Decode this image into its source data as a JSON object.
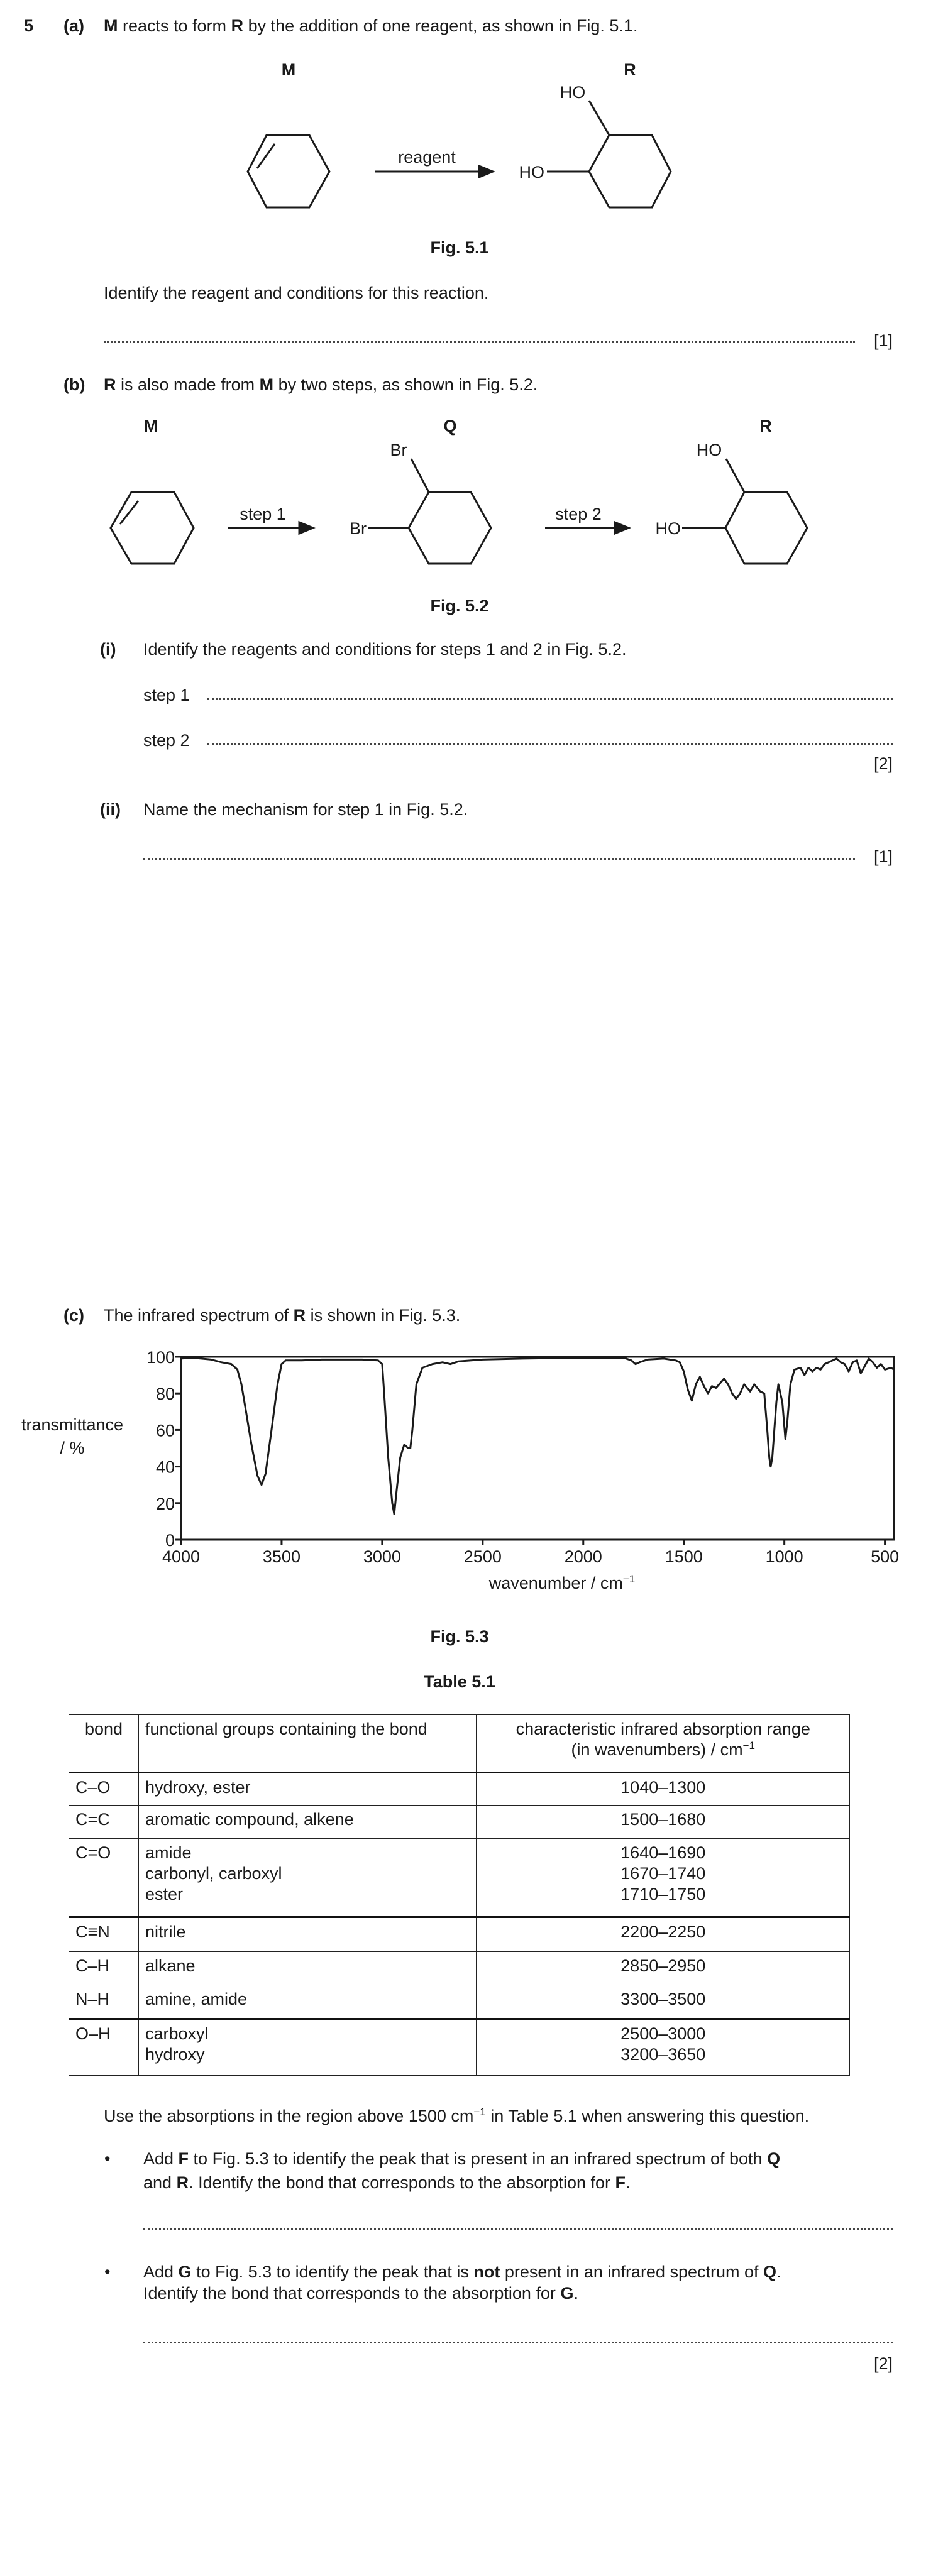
{
  "question_number": "5",
  "part_a": {
    "label": "(a)",
    "text": [
      "M",
      " reacts to form ",
      "R",
      " by the addition of one reagent, as shown in Fig. 5.1."
    ],
    "fig": {
      "label_m": "M",
      "label_r": "R",
      "arrow_label": "reagent",
      "ho_top": "HO",
      "ho_left": "HO",
      "caption": "Fig. 5.1"
    },
    "prompt": "Identify the reagent and conditions for this reaction.",
    "marks": "[1]"
  },
  "part_b": {
    "label": "(b)",
    "text": [
      "R",
      " is also made from ",
      "M",
      " by two steps, as shown in Fig. 5.2."
    ],
    "fig": {
      "label_m": "M",
      "label_q": "Q",
      "label_r": "R",
      "step1": "step 1",
      "step2": "step 2",
      "br_top": "Br",
      "br_left": "Br",
      "ho_top": "HO",
      "ho_left": "HO",
      "caption": "Fig. 5.2"
    },
    "i": {
      "label": "(i)",
      "prompt": "Identify the reagents and conditions for steps 1 and 2 in Fig. 5.2.",
      "step1_label": "step 1",
      "step2_label": "step 2",
      "marks": "[2]"
    },
    "ii": {
      "label": "(ii)",
      "prompt": "Name the mechanism for step 1 in Fig. 5.2.",
      "marks": "[1]"
    }
  },
  "part_c": {
    "label": "(c)",
    "text": [
      "The infrared spectrum of ",
      "R",
      " is shown in Fig. 5.3."
    ],
    "fig_caption": "Fig. 5.3",
    "table_caption": "Table 5.1",
    "table": {
      "headers": [
        "bond",
        "functional groups containing the bond",
        "characteristic infrared absorption range",
        "(in wavenumbers) / cm",
        "−1"
      ],
      "rows": [
        {
          "bond": "C–O",
          "groups": [
            "hydroxy, ester"
          ],
          "ranges": [
            "1040–1300"
          ]
        },
        {
          "bond": "C=C",
          "groups": [
            "aromatic compound, alkene"
          ],
          "ranges": [
            "1500–1680"
          ]
        },
        {
          "bond": "C=O",
          "groups": [
            "amide",
            "carbonyl, carboxyl",
            "ester"
          ],
          "ranges": [
            "1640–1690",
            "1670–1740",
            "1710–1750"
          ]
        },
        {
          "bond": "C≡N",
          "groups": [
            "nitrile"
          ],
          "ranges": [
            "2200–2250"
          ]
        },
        {
          "bond": "C–H",
          "groups": [
            "alkane"
          ],
          "ranges": [
            "2850–2950"
          ]
        },
        {
          "bond": "N–H",
          "groups": [
            "amine, amide"
          ],
          "ranges": [
            "3300–3500"
          ]
        },
        {
          "bond": "O–H",
          "groups": [
            "carboxyl",
            "hydroxy"
          ],
          "ranges": [
            "2500–3000",
            "3200–3650"
          ]
        }
      ]
    },
    "instruction": [
      "Use the absorptions in the region above 1500 cm",
      "−1",
      " in Table 5.1 when answering this question."
    ],
    "bullet_f": [
      "Add ",
      "F",
      " to Fig. 5.3 to identify the peak that is present in an infrared spectrum of both ",
      "Q",
      "and ",
      "R",
      ". Identify the bond that corresponds to the absorption for ",
      "F",
      "."
    ],
    "bullet_g": [
      "Add ",
      "G",
      " to Fig. 5.3 to identify the peak that is ",
      "not",
      " present in an infrared spectrum of ",
      "Q",
      ".",
      "Identify the bond that corresponds to the absorption for ",
      "G",
      "."
    ],
    "bullet_symbol": "•",
    "marks": "[2]"
  },
  "chart_data": {
    "type": "line",
    "title": "",
    "xlabel": "wavenumber / cm",
    "xlabel_sup": "−1",
    "ylabel": [
      "transmittance",
      "/ %"
    ],
    "xlim": [
      4000,
      455
    ],
    "ylim": [
      0,
      100
    ],
    "xticks": [
      4000,
      3500,
      3000,
      2500,
      2000,
      1500,
      1000,
      500
    ],
    "yticks": [
      0,
      20,
      40,
      60,
      80,
      100
    ],
    "grid": false,
    "series": [
      {
        "name": "R",
        "points": [
          [
            4000,
            99
          ],
          [
            3950,
            99.5
          ],
          [
            3900,
            99
          ],
          [
            3850,
            98.5
          ],
          [
            3800,
            97
          ],
          [
            3750,
            96
          ],
          [
            3720,
            93
          ],
          [
            3700,
            85
          ],
          [
            3680,
            72
          ],
          [
            3650,
            52
          ],
          [
            3620,
            35
          ],
          [
            3600,
            30
          ],
          [
            3580,
            36
          ],
          [
            3550,
            60
          ],
          [
            3520,
            85
          ],
          [
            3500,
            96
          ],
          [
            3480,
            98
          ],
          [
            3400,
            98
          ],
          [
            3300,
            98.5
          ],
          [
            3200,
            98.5
          ],
          [
            3100,
            98.5
          ],
          [
            3020,
            98
          ],
          [
            3000,
            96
          ],
          [
            2990,
            80
          ],
          [
            2970,
            45
          ],
          [
            2950,
            20
          ],
          [
            2940,
            14
          ],
          [
            2930,
            25
          ],
          [
            2910,
            45
          ],
          [
            2890,
            52
          ],
          [
            2870,
            50
          ],
          [
            2860,
            50
          ],
          [
            2850,
            60
          ],
          [
            2830,
            85
          ],
          [
            2800,
            94
          ],
          [
            2750,
            96
          ],
          [
            2700,
            97
          ],
          [
            2660,
            96
          ],
          [
            2620,
            97.5
          ],
          [
            2500,
            98.5
          ],
          [
            2300,
            99
          ],
          [
            2000,
            99.5
          ],
          [
            1800,
            99.5
          ],
          [
            1760,
            98
          ],
          [
            1740,
            96
          ],
          [
            1720,
            97
          ],
          [
            1680,
            98.5
          ],
          [
            1600,
            99
          ],
          [
            1540,
            98
          ],
          [
            1520,
            97
          ],
          [
            1500,
            92
          ],
          [
            1480,
            82
          ],
          [
            1460,
            76
          ],
          [
            1440,
            85
          ],
          [
            1420,
            89
          ],
          [
            1400,
            84
          ],
          [
            1380,
            80
          ],
          [
            1360,
            84
          ],
          [
            1340,
            83
          ],
          [
            1300,
            88
          ],
          [
            1280,
            85
          ],
          [
            1260,
            80
          ],
          [
            1240,
            77
          ],
          [
            1220,
            80
          ],
          [
            1200,
            85
          ],
          [
            1170,
            81
          ],
          [
            1150,
            85
          ],
          [
            1120,
            81
          ],
          [
            1100,
            80
          ],
          [
            1085,
            60
          ],
          [
            1075,
            45
          ],
          [
            1068,
            40
          ],
          [
            1060,
            45
          ],
          [
            1040,
            75
          ],
          [
            1030,
            85
          ],
          [
            1010,
            75
          ],
          [
            995,
            55
          ],
          [
            985,
            65
          ],
          [
            970,
            85
          ],
          [
            950,
            93
          ],
          [
            920,
            94
          ],
          [
            900,
            90
          ],
          [
            880,
            94
          ],
          [
            860,
            92
          ],
          [
            840,
            94
          ],
          [
            820,
            93
          ],
          [
            800,
            96
          ],
          [
            780,
            97
          ],
          [
            760,
            98
          ],
          [
            740,
            99
          ],
          [
            720,
            97
          ],
          [
            700,
            96
          ],
          [
            680,
            92
          ],
          [
            660,
            97
          ],
          [
            640,
            98
          ],
          [
            620,
            91
          ],
          [
            600,
            95
          ],
          [
            580,
            99
          ],
          [
            560,
            97
          ],
          [
            540,
            94
          ],
          [
            520,
            96
          ],
          [
            500,
            93
          ],
          [
            470,
            94
          ],
          [
            455,
            93
          ]
        ]
      }
    ]
  }
}
